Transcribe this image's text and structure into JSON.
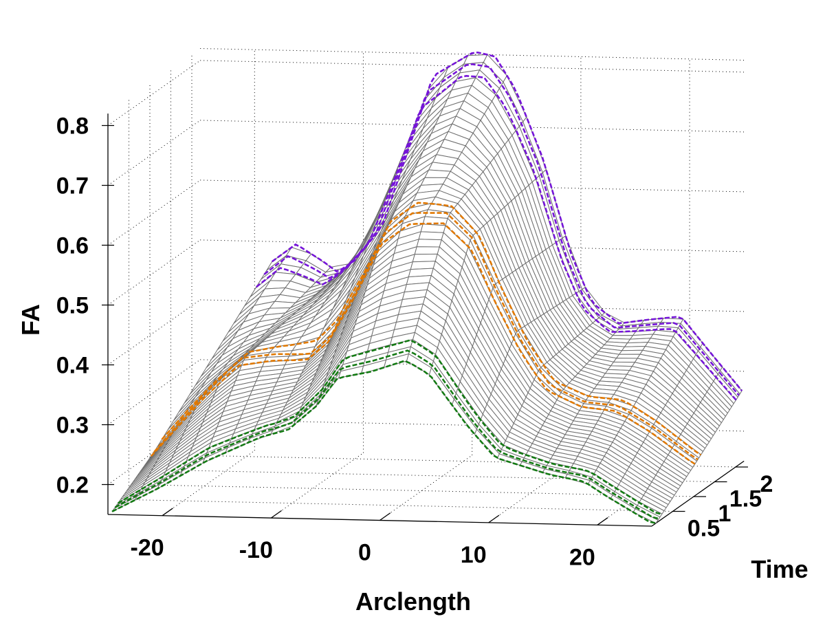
{
  "chart_data": {
    "type": "surface",
    "title": "",
    "xlabel": "Arclength",
    "ylabel": "Time",
    "zlabel": "FA",
    "xlim": [
      -25,
      25
    ],
    "ylim": [
      0,
      2.2
    ],
    "zlim": [
      0.15,
      0.82
    ],
    "grid": true,
    "x_ticks": [
      -20,
      -10,
      0,
      10,
      20
    ],
    "x_tick_labels": [
      "-20",
      "-10",
      "0",
      "10",
      "20"
    ],
    "y_ticks": [
      0.5,
      1,
      1.5,
      2
    ],
    "y_tick_labels": [
      "0.5",
      "1",
      "1.5",
      "2"
    ],
    "z_ticks": [
      0.2,
      0.3,
      0.4,
      0.5,
      0.6,
      0.7,
      0.8
    ],
    "z_tick_labels": [
      "0.2",
      "0.3",
      "0.4",
      "0.5",
      "0.6",
      "0.7",
      "0.8"
    ],
    "mesh_color": "#6e6e6e",
    "profiles": [
      {
        "time": 0.1,
        "color": "#137a13",
        "style": "dashed",
        "arclength": [
          -25,
          -20.8,
          -16.3,
          -11.3,
          -8.8,
          -6.2,
          -4.3,
          -1.2,
          2.0,
          4.2,
          7.7,
          10.2,
          15.3,
          18.4,
          20.3,
          24.4,
          25
        ],
        "fa": [
          0.15,
          0.19,
          0.238,
          0.28,
          0.293,
          0.334,
          0.381,
          0.393,
          0.413,
          0.39,
          0.305,
          0.254,
          0.227,
          0.217,
          0.195,
          0.152,
          0.15
        ]
      },
      {
        "time": 1.1,
        "color": "#e07800",
        "style": "dashed",
        "arclength": [
          -25,
          -20.2,
          -17.0,
          -13.9,
          -10.7,
          -8.8,
          -6.3,
          -3.8,
          -1.2,
          1.9,
          4.5,
          6.4,
          8.9,
          11.4,
          14.6,
          17.7,
          20.9,
          24.7,
          25
        ],
        "fa": [
          0.2,
          0.302,
          0.36,
          0.368,
          0.369,
          0.399,
          0.48,
          0.573,
          0.609,
          0.61,
          0.565,
          0.485,
          0.394,
          0.326,
          0.299,
          0.294,
          0.26,
          0.21,
          0.207
        ]
      },
      {
        "time": 2.15,
        "color": "#7514d8",
        "style": "dashed",
        "arclength": [
          -18.2,
          -16.0,
          -13.5,
          -12.2,
          -10.7,
          -8.1,
          -5.3,
          -3.4,
          0.4,
          2.3,
          4.2,
          6.7,
          9.3,
          11.2,
          13.7,
          16.2,
          19.4,
          22.5,
          25
        ],
        "fa": [
          0.469,
          0.499,
          0.471,
          0.454,
          0.472,
          0.531,
          0.681,
          0.785,
          0.827,
          0.82,
          0.765,
          0.651,
          0.492,
          0.412,
          0.378,
          0.385,
          0.392,
          0.324,
          0.27
        ]
      }
    ]
  }
}
